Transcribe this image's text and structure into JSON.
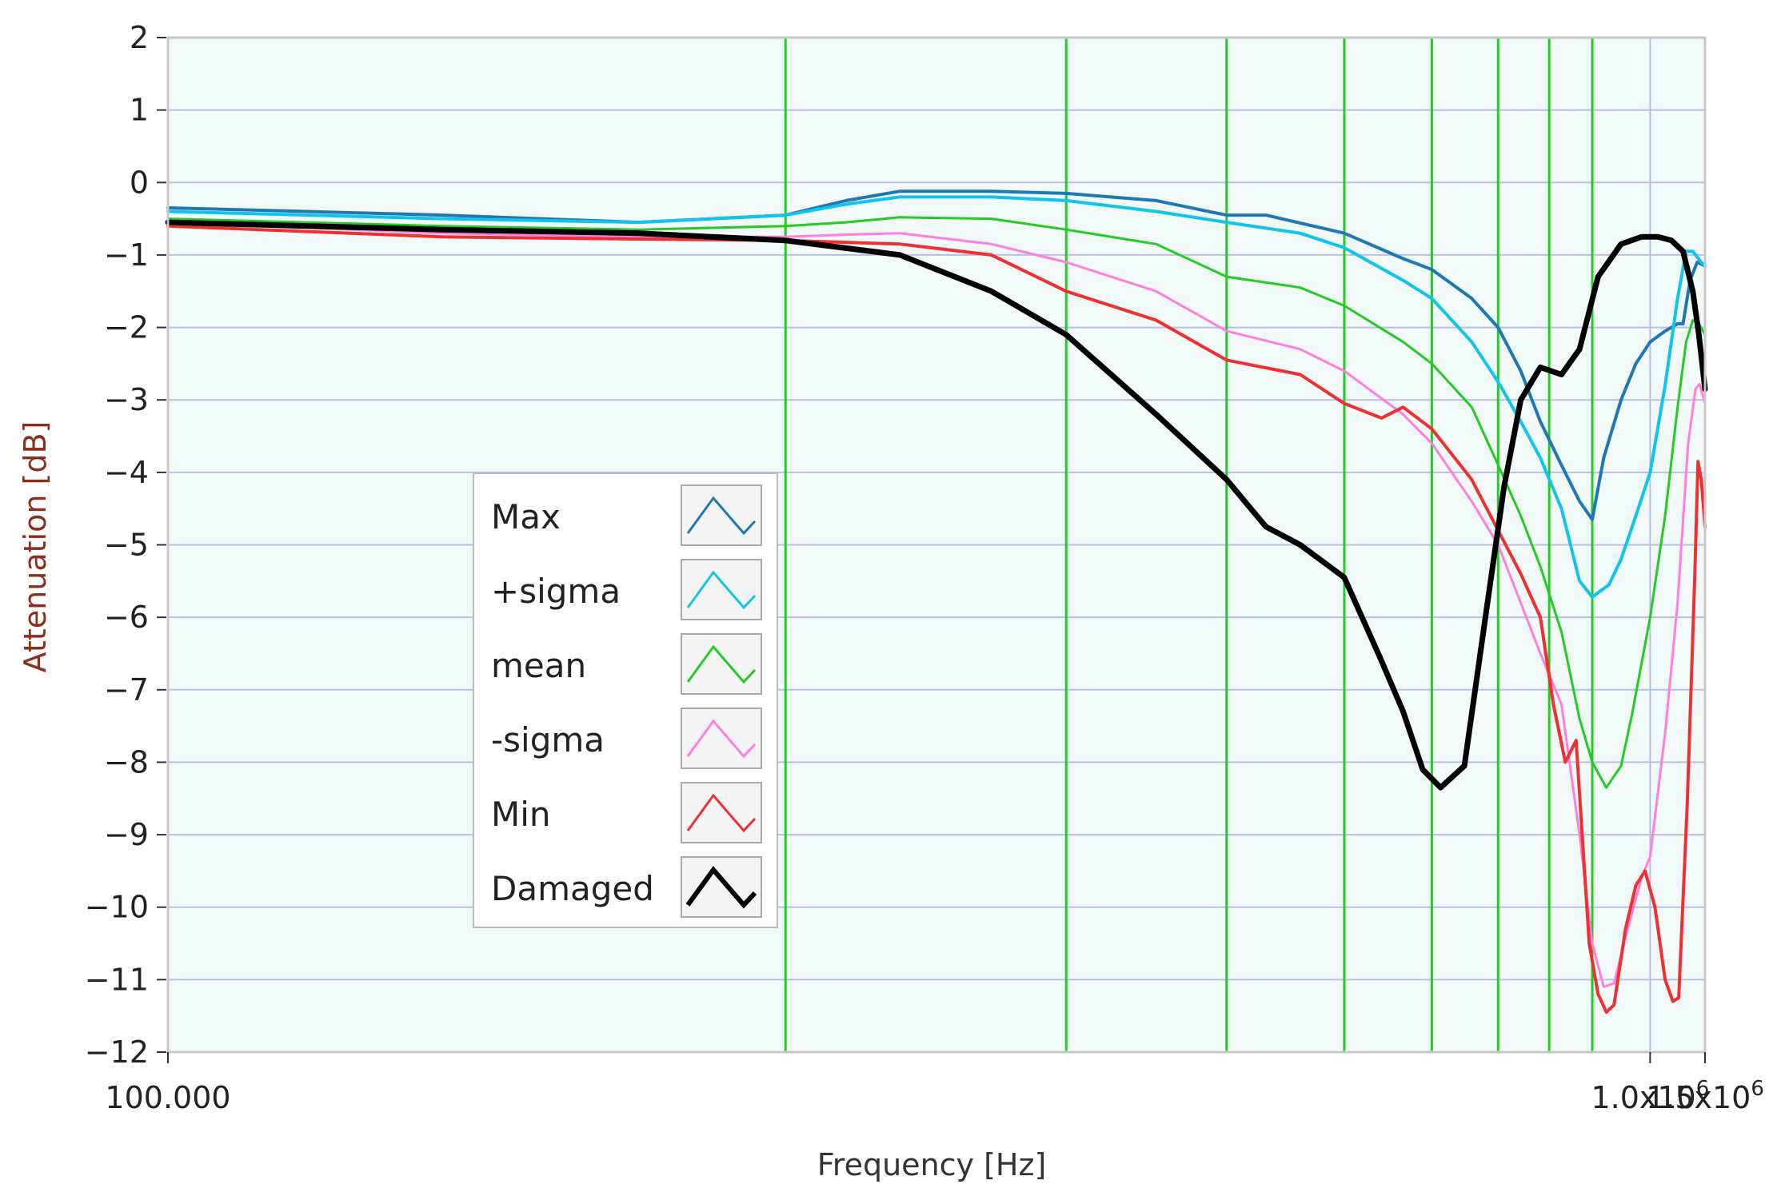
{
  "chart_data": {
    "type": "line",
    "xlabel": "Frequency [Hz]",
    "ylabel": "Attenuation [dB]",
    "x_scale": "linear-on-reciprocal",
    "xlim": [
      100000,
      1500000
    ],
    "ylim": [
      -12,
      2
    ],
    "y_ticks": [
      "2",
      "1",
      "0",
      "-1",
      "-2",
      "-3",
      "-4",
      "-5",
      "-6",
      "-7",
      "-8",
      "-9",
      "-10",
      "-11",
      "-12"
    ],
    "x_ticks": [
      {
        "value": 100000,
        "label": "100.000"
      },
      {
        "value": 1000000,
        "label": "1.0x10",
        "exp": "6"
      },
      {
        "value": 1500000,
        "label": "1.5x10",
        "exp": "6"
      }
    ],
    "colors": {
      "plot_bg": "#f2f9f9",
      "grid": "#b8bee6",
      "marker_lines": "#22cc22",
      "axis_label": "#8b2f1c",
      "frame": "#c8c8c8"
    },
    "marker_lines_x": [
      160000,
      220000,
      280000,
      350000,
      430000,
      520000,
      620000,
      740000
    ],
    "legend_position": "lower-left",
    "series": [
      {
        "name": "Max",
        "color": "#1f78b4",
        "width": 4,
        "points": [
          [
            100000,
            -0.35
          ],
          [
            120000,
            -0.45
          ],
          [
            140000,
            -0.55
          ],
          [
            160000,
            -0.45
          ],
          [
            170000,
            -0.25
          ],
          [
            180000,
            -0.12
          ],
          [
            200000,
            -0.12
          ],
          [
            220000,
            -0.15
          ],
          [
            250000,
            -0.25
          ],
          [
            280000,
            -0.45
          ],
          [
            300000,
            -0.45
          ],
          [
            350000,
            -0.7
          ],
          [
            400000,
            -1.05
          ],
          [
            430000,
            -1.2
          ],
          [
            480000,
            -1.6
          ],
          [
            520000,
            -2.0
          ],
          [
            560000,
            -2.6
          ],
          [
            600000,
            -3.3
          ],
          [
            650000,
            -3.9
          ],
          [
            700000,
            -4.4
          ],
          [
            740000,
            -4.65
          ],
          [
            780000,
            -3.8
          ],
          [
            850000,
            -3.0
          ],
          [
            920000,
            -2.5
          ],
          [
            1000000,
            -2.2
          ],
          [
            1100000,
            -2.05
          ],
          [
            1200000,
            -1.95
          ],
          [
            1250000,
            -1.95
          ],
          [
            1320000,
            -1.35
          ],
          [
            1400000,
            -1.1
          ],
          [
            1500000,
            -1.15
          ]
        ]
      },
      {
        "name": "+sigma",
        "color": "#11c4ec",
        "width": 4,
        "points": [
          [
            100000,
            -0.4
          ],
          [
            120000,
            -0.5
          ],
          [
            140000,
            -0.55
          ],
          [
            160000,
            -0.45
          ],
          [
            170000,
            -0.3
          ],
          [
            180000,
            -0.2
          ],
          [
            200000,
            -0.2
          ],
          [
            220000,
            -0.25
          ],
          [
            250000,
            -0.4
          ],
          [
            280000,
            -0.55
          ],
          [
            320000,
            -0.7
          ],
          [
            350000,
            -0.9
          ],
          [
            400000,
            -1.35
          ],
          [
            430000,
            -1.6
          ],
          [
            480000,
            -2.2
          ],
          [
            520000,
            -2.75
          ],
          [
            560000,
            -3.3
          ],
          [
            600000,
            -3.8
          ],
          [
            650000,
            -4.5
          ],
          [
            700000,
            -5.5
          ],
          [
            740000,
            -5.72
          ],
          [
            800000,
            -5.55
          ],
          [
            850000,
            -5.2
          ],
          [
            920000,
            -4.6
          ],
          [
            1000000,
            -4.0
          ],
          [
            1100000,
            -2.8
          ],
          [
            1200000,
            -1.6
          ],
          [
            1280000,
            -0.95
          ],
          [
            1350000,
            -0.95
          ],
          [
            1450000,
            -1.1
          ],
          [
            1500000,
            -1.15
          ]
        ]
      },
      {
        "name": "mean",
        "color": "#22cc22",
        "width": 3,
        "points": [
          [
            100000,
            -0.5
          ],
          [
            120000,
            -0.6
          ],
          [
            140000,
            -0.65
          ],
          [
            160000,
            -0.6
          ],
          [
            170000,
            -0.55
          ],
          [
            180000,
            -0.48
          ],
          [
            200000,
            -0.5
          ],
          [
            220000,
            -0.65
          ],
          [
            250000,
            -0.85
          ],
          [
            280000,
            -1.3
          ],
          [
            320000,
            -1.45
          ],
          [
            350000,
            -1.7
          ],
          [
            400000,
            -2.2
          ],
          [
            430000,
            -2.5
          ],
          [
            480000,
            -3.1
          ],
          [
            520000,
            -3.9
          ],
          [
            560000,
            -4.6
          ],
          [
            600000,
            -5.3
          ],
          [
            650000,
            -6.2
          ],
          [
            700000,
            -7.4
          ],
          [
            740000,
            -8.0
          ],
          [
            790000,
            -8.35
          ],
          [
            850000,
            -8.05
          ],
          [
            900000,
            -7.35
          ],
          [
            1000000,
            -6.0
          ],
          [
            1100000,
            -4.6
          ],
          [
            1200000,
            -3.1
          ],
          [
            1280000,
            -2.2
          ],
          [
            1350000,
            -1.9
          ],
          [
            1420000,
            -1.95
          ],
          [
            1500000,
            -2.1
          ]
        ]
      },
      {
        "name": "-sigma",
        "color": "#ff7ee0",
        "width": 3,
        "points": [
          [
            100000,
            -0.55
          ],
          [
            120000,
            -0.7
          ],
          [
            140000,
            -0.75
          ],
          [
            160000,
            -0.75
          ],
          [
            170000,
            -0.72
          ],
          [
            180000,
            -0.7
          ],
          [
            200000,
            -0.85
          ],
          [
            220000,
            -1.1
          ],
          [
            250000,
            -1.5
          ],
          [
            280000,
            -2.05
          ],
          [
            320000,
            -2.3
          ],
          [
            350000,
            -2.6
          ],
          [
            400000,
            -3.2
          ],
          [
            430000,
            -3.6
          ],
          [
            480000,
            -4.4
          ],
          [
            520000,
            -5.0
          ],
          [
            560000,
            -5.8
          ],
          [
            600000,
            -6.5
          ],
          [
            650000,
            -7.2
          ],
          [
            700000,
            -9.0
          ],
          [
            740000,
            -10.5
          ],
          [
            780000,
            -11.1
          ],
          [
            820000,
            -11.05
          ],
          [
            880000,
            -10.3
          ],
          [
            950000,
            -9.6
          ],
          [
            1000000,
            -9.3
          ],
          [
            1100000,
            -7.6
          ],
          [
            1200000,
            -5.8
          ],
          [
            1300000,
            -3.6
          ],
          [
            1380000,
            -2.85
          ],
          [
            1430000,
            -2.78
          ],
          [
            1500000,
            -3.05
          ]
        ]
      },
      {
        "name": "Min",
        "color": "#f03030",
        "width": 4,
        "points": [
          [
            100000,
            -0.6
          ],
          [
            120000,
            -0.75
          ],
          [
            140000,
            -0.78
          ],
          [
            160000,
            -0.8
          ],
          [
            180000,
            -0.85
          ],
          [
            200000,
            -1.0
          ],
          [
            220000,
            -1.5
          ],
          [
            250000,
            -1.9
          ],
          [
            280000,
            -2.45
          ],
          [
            320000,
            -2.65
          ],
          [
            350000,
            -3.05
          ],
          [
            380000,
            -3.25
          ],
          [
            400000,
            -3.1
          ],
          [
            430000,
            -3.4
          ],
          [
            480000,
            -4.1
          ],
          [
            520000,
            -4.8
          ],
          [
            560000,
            -5.4
          ],
          [
            600000,
            -6.0
          ],
          [
            630000,
            -7.2
          ],
          [
            660000,
            -8.0
          ],
          [
            690000,
            -7.7
          ],
          [
            730000,
            -10.5
          ],
          [
            760000,
            -11.2
          ],
          [
            790000,
            -11.45
          ],
          [
            820000,
            -11.35
          ],
          [
            870000,
            -10.3
          ],
          [
            920000,
            -9.7
          ],
          [
            970000,
            -9.5
          ],
          [
            1030000,
            -10.0
          ],
          [
            1100000,
            -11.0
          ],
          [
            1160000,
            -11.3
          ],
          [
            1210000,
            -11.25
          ],
          [
            1290000,
            -8.6
          ],
          [
            1370000,
            -5.5
          ],
          [
            1410000,
            -3.85
          ],
          [
            1450000,
            -4.1
          ],
          [
            1500000,
            -4.75
          ]
        ]
      },
      {
        "name": "Damaged",
        "color": "#000000",
        "width": 7,
        "points": [
          [
            100000,
            -0.55
          ],
          [
            120000,
            -0.65
          ],
          [
            140000,
            -0.7
          ],
          [
            160000,
            -0.8
          ],
          [
            180000,
            -1.0
          ],
          [
            200000,
            -1.5
          ],
          [
            220000,
            -2.1
          ],
          [
            250000,
            -3.2
          ],
          [
            280000,
            -4.1
          ],
          [
            300000,
            -4.75
          ],
          [
            320000,
            -5.0
          ],
          [
            350000,
            -5.45
          ],
          [
            380000,
            -6.6
          ],
          [
            400000,
            -7.3
          ],
          [
            420000,
            -8.1
          ],
          [
            440000,
            -8.35
          ],
          [
            470000,
            -8.05
          ],
          [
            500000,
            -6.0
          ],
          [
            530000,
            -4.2
          ],
          [
            560000,
            -3.0
          ],
          [
            600000,
            -2.55
          ],
          [
            650000,
            -2.65
          ],
          [
            700000,
            -2.3
          ],
          [
            760000,
            -1.3
          ],
          [
            850000,
            -0.85
          ],
          [
            950000,
            -0.75
          ],
          [
            1050000,
            -0.75
          ],
          [
            1150000,
            -0.8
          ],
          [
            1250000,
            -0.95
          ],
          [
            1350000,
            -1.5
          ],
          [
            1420000,
            -2.1
          ],
          [
            1500000,
            -2.85
          ]
        ]
      }
    ]
  }
}
